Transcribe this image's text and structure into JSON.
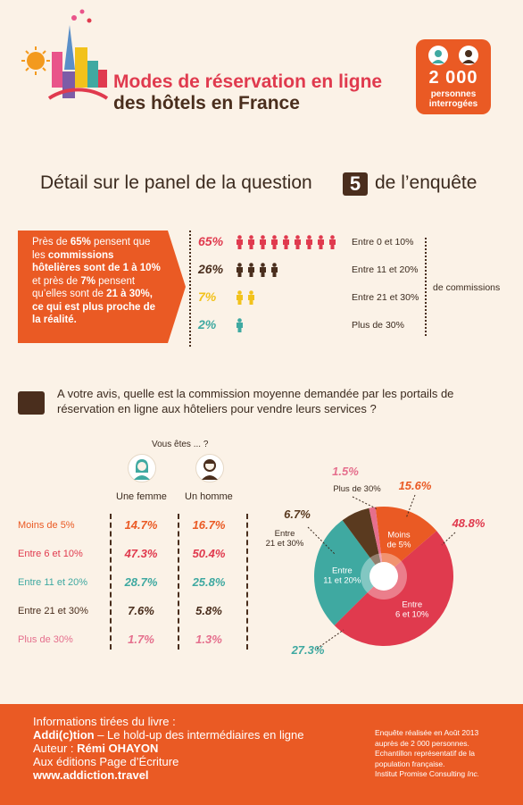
{
  "header": {
    "title_line1": "Modes de réservation en ligne",
    "title_line2": "des hôtels en France",
    "badge_number": "2 000",
    "badge_label_line1": "personnes",
    "badge_label_line2": "interrogées"
  },
  "section1": {
    "title_before": "Détail sur le panel de la question",
    "question_number": "5",
    "title_after": "de l’enquête",
    "callout": {
      "p1": "Près de ",
      "p1b": "65%",
      "p2": " pensent que les ",
      "p2b": "commissions hôtelières sont de 1 à 10%",
      "p3": " et près de ",
      "p3b": "7%",
      "p4": " pensent qu’elles sont de ",
      "p4b": "21 à 30%, ce qui est plus proche de la réalité."
    },
    "suffix_label": "de commissions"
  },
  "section2": {
    "question": "A votre avis, quelle est la commission moyenne demandée par les portails de réservation en ligne aux hôteliers pour vendre leurs services ?",
    "you_are": "Vous êtes ... ?",
    "col_woman": "Une femme",
    "col_man": "Un homme"
  },
  "chart_data": [
    {
      "type": "bar",
      "categories": [
        "Entre 0 et 10%",
        "Entre 11 et 20%",
        "Entre 21 et 30%",
        "Plus de 30%"
      ],
      "values": [
        65,
        26,
        7,
        2
      ],
      "value_labels": [
        "65%",
        "26%",
        "7%",
        "2%"
      ],
      "icon_counts": [
        9,
        4,
        2,
        1
      ],
      "colors": [
        "#e03a4e",
        "#4a2e1d",
        "#f2c21b",
        "#3fa9a1"
      ]
    },
    {
      "type": "table",
      "columns": [
        "Une femme",
        "Un homme"
      ],
      "rows": [
        {
          "label": "Moins de 5%",
          "values": [
            "14.7%",
            "16.7%"
          ],
          "color": "#ea5a24"
        },
        {
          "label": "Entre 6 et 10%",
          "values": [
            "47.3%",
            "50.4%"
          ],
          "color": "#e03a4e"
        },
        {
          "label": "Entre 11 et 20%",
          "values": [
            "28.7%",
            "25.8%"
          ],
          "color": "#3fa9a1"
        },
        {
          "label": "Entre 21 et 30%",
          "values": [
            "7.6%",
            "5.8%"
          ],
          "color": "#4a2e1d"
        },
        {
          "label": "Plus de 30%",
          "values": [
            "1.7%",
            "1.3%"
          ],
          "color": "#e56f8d"
        }
      ]
    },
    {
      "type": "pie",
      "slices": [
        {
          "label": "Moins de 5%",
          "value": 15.6,
          "value_label": "15.6%",
          "color": "#ea5a24"
        },
        {
          "label": "Entre 6 et 10%",
          "value": 48.8,
          "value_label": "48.8%",
          "color": "#e03a4e"
        },
        {
          "label": "Entre 11 et 20%",
          "value": 27.3,
          "value_label": "27.3%",
          "color": "#3fa9a1"
        },
        {
          "label": "Entre 21 et 30%",
          "value": 6.7,
          "value_label": "6.7%",
          "color": "#5a3a1f"
        },
        {
          "label": "Plus de 30%",
          "value": 1.5,
          "value_label": "1.5%",
          "color": "#e56f8d"
        }
      ]
    }
  ],
  "footer": {
    "l1": "Informations tirées du livre :",
    "l2b": "Addi(c)tion",
    "l2": " – Le hold-up des intermédiaires en ligne",
    "l3": "Auteur : ",
    "l3b": "Rémi OHAYON",
    "l4": "Aux éditions Page d’Écriture",
    "l5": "www.addiction.travel",
    "r1": "Enquête réalisée en Août 2013",
    "r2": "auprès de 2 000 personnes.",
    "r3": "Echantillon représentatif de la",
    "r4": "population française.",
    "r5": "Institut Promise Consulting",
    "r5i": " Inc."
  }
}
